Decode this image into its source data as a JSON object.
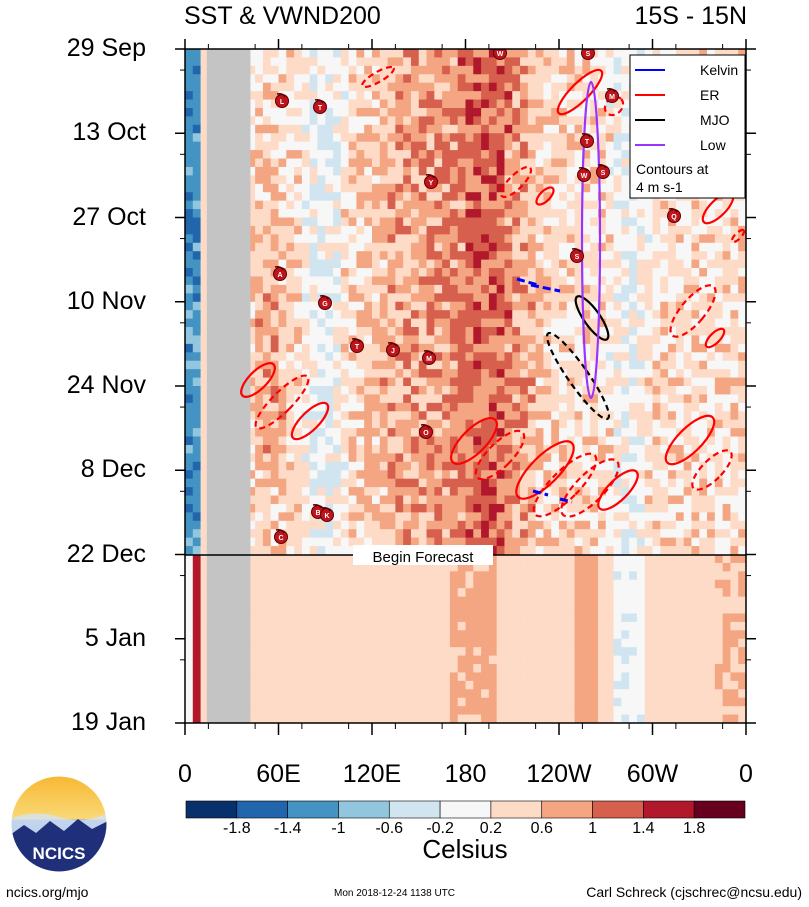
{
  "header": {
    "title_left": "SST & VWND200",
    "title_right": "15S - 15N"
  },
  "chart_data": {
    "type": "heatmap",
    "title": "SST & VWND200",
    "subtitle": "15S - 15N",
    "x_ticks": [
      "0",
      "60E",
      "120E",
      "180",
      "120W",
      "60W",
      "0"
    ],
    "x_range_deg_east": [
      0,
      360
    ],
    "y_ticks": [
      "29 Sep",
      "13 Oct",
      "27 Oct",
      "10 Nov",
      "24 Nov",
      "8 Dec",
      "22 Dec",
      "5 Jan",
      "19 Jan"
    ],
    "y_range": [
      "29 Sep",
      "19 Jan"
    ],
    "forecast_label": "Begin Forecast",
    "forecast_start": "22 Dec",
    "colorbar": {
      "ticks": [
        "-1.8",
        "-1.4",
        "-1",
        "-0.6",
        "-0.2",
        "0.2",
        "0.6",
        "1",
        "1.4",
        "1.8"
      ],
      "colors": [
        "#08306b",
        "#2166ac",
        "#4393c3",
        "#92c5de",
        "#d1e5f0",
        "#f7f7f7",
        "#fddbc7",
        "#f4a582",
        "#d6604d",
        "#b2182b",
        "#67001f"
      ],
      "units": "Celsius"
    },
    "legend": {
      "position": "top-right",
      "entries": [
        {
          "name": "Kelvin",
          "color": "#0000ff"
        },
        {
          "name": "ER",
          "color": "#ff0000"
        },
        {
          "name": "MJO",
          "color": "#000000"
        },
        {
          "name": "Low",
          "color": "#9933ff"
        }
      ],
      "note_line1": "Contours at",
      "note_line2": "4 m s-1"
    },
    "storm_labels": [
      "W",
      "S",
      "L",
      "T",
      "M",
      "T",
      "Y",
      "W",
      "S",
      "Q",
      "S",
      "A",
      "G",
      "T",
      "J",
      "M",
      "O",
      "B",
      "K",
      "C"
    ]
  },
  "footer": {
    "left": "ncics.org/mjo",
    "middle": "Mon 2018-12-24 1138 UTC",
    "right": "Carl Schreck (cjschrec@ncsu.edu)",
    "logo_text": "NCICS"
  }
}
